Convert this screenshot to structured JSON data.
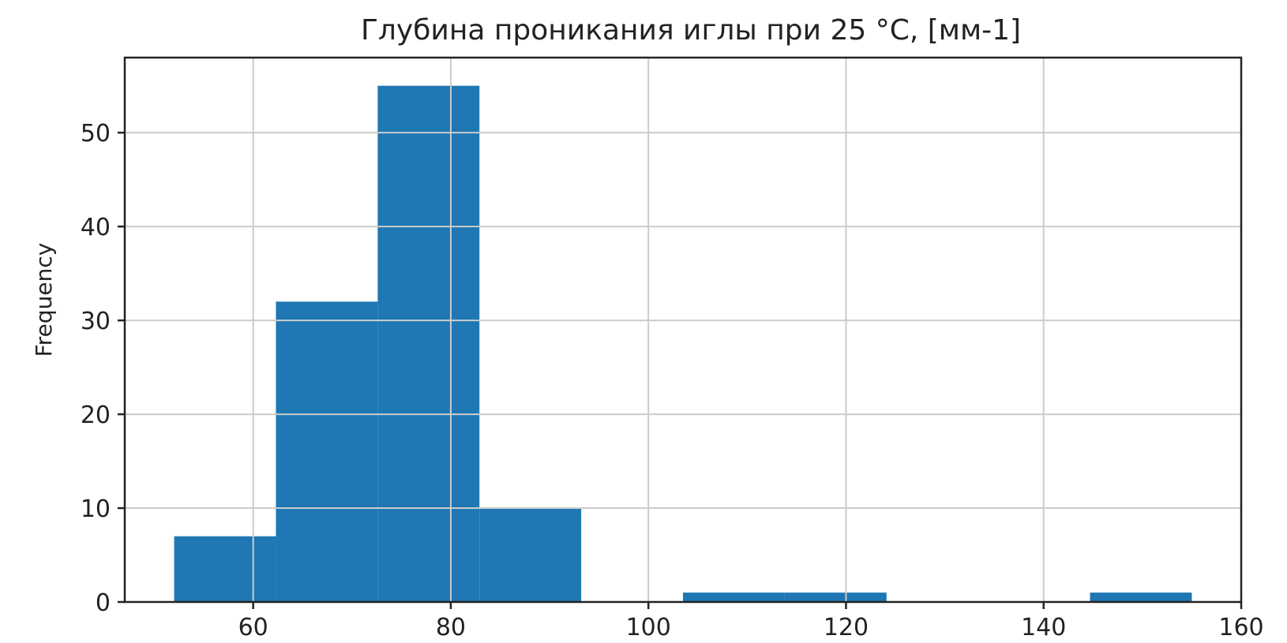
{
  "chart_data": {
    "type": "bar",
    "subtype": "histogram",
    "title": "Глубина  проникания иглы при 25 °С, [мм-1]",
    "xlabel": "",
    "ylabel": "Frequency",
    "xlim": [
      47,
      160
    ],
    "ylim": [
      0,
      58
    ],
    "grid": true,
    "bar_color": "#1f77b4",
    "xticks": [
      60,
      80,
      100,
      120,
      140,
      160
    ],
    "yticks": [
      0,
      10,
      20,
      30,
      40,
      50
    ],
    "bins": [
      {
        "x0": 52,
        "x1": 62.3,
        "count": 7
      },
      {
        "x0": 62.3,
        "x1": 72.6,
        "count": 32
      },
      {
        "x0": 72.6,
        "x1": 82.9,
        "count": 55
      },
      {
        "x0": 82.9,
        "x1": 93.2,
        "count": 10
      },
      {
        "x0": 93.2,
        "x1": 103.5,
        "count": 0
      },
      {
        "x0": 103.5,
        "x1": 113.8,
        "count": 1
      },
      {
        "x0": 113.8,
        "x1": 124.1,
        "count": 1
      },
      {
        "x0": 124.1,
        "x1": 134.4,
        "count": 0
      },
      {
        "x0": 134.4,
        "x1": 144.7,
        "count": 0
      },
      {
        "x0": 144.7,
        "x1": 155,
        "count": 1
      }
    ]
  }
}
